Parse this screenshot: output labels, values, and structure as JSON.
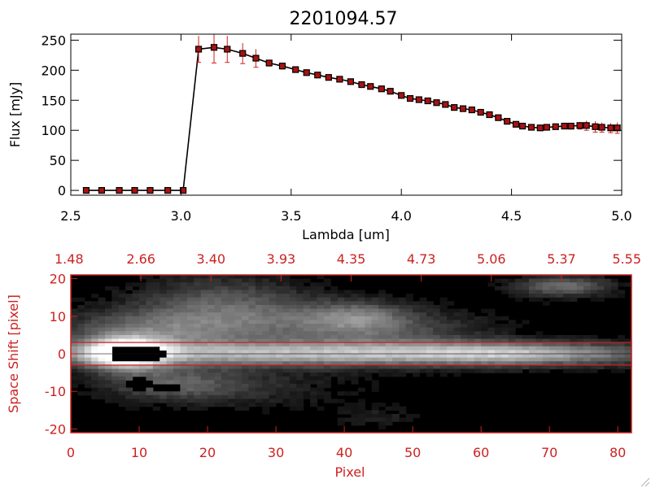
{
  "title": "2201094.57",
  "colors": {
    "axis": "#000000",
    "accent": "#cc2222",
    "marker": "#aa1111",
    "line": "#000000",
    "slit": "#cc2222"
  },
  "chart_data": [
    {
      "type": "line",
      "title": "2201094.57",
      "xlabel": "Lambda [um]",
      "ylabel": "Flux [mJy]",
      "xlim": [
        2.5,
        5.0
      ],
      "ylim": [
        -8,
        260
      ],
      "xticks": [
        "2.5",
        "3.0",
        "3.5",
        "4.0",
        "4.5",
        "5.0"
      ],
      "yticks": [
        "0",
        "50",
        "100",
        "150",
        "200",
        "250"
      ],
      "xtick_values": [
        2.5,
        3.0,
        3.5,
        4.0,
        4.5,
        5.0
      ],
      "ytick_values": [
        0,
        50,
        100,
        150,
        200,
        250
      ],
      "grid": false,
      "series": [
        {
          "x": [
            2.57,
            2.64,
            2.72,
            2.79,
            2.86,
            2.94,
            3.01,
            3.08,
            3.15,
            3.21,
            3.28,
            3.34,
            3.4,
            3.46,
            3.52,
            3.57,
            3.62,
            3.67,
            3.72,
            3.77,
            3.82,
            3.86,
            3.91,
            3.95,
            4.0,
            4.04,
            4.08,
            4.12,
            4.16,
            4.2,
            4.24,
            4.28,
            4.32,
            4.36,
            4.4,
            4.44,
            4.48,
            4.52,
            4.55,
            4.59,
            4.63,
            4.66,
            4.7,
            4.74,
            4.77,
            4.81,
            4.84,
            4.88,
            4.91,
            4.95,
            4.98
          ],
          "y": [
            0,
            0,
            0,
            0,
            0,
            0,
            0,
            235,
            238,
            235,
            228,
            220,
            212,
            207,
            201,
            196,
            192,
            188,
            185,
            181,
            176,
            173,
            169,
            165,
            158,
            153,
            151,
            149,
            146,
            143,
            138,
            136,
            134,
            130,
            126,
            121,
            115,
            110,
            107,
            105,
            104,
            105,
            106,
            107,
            107,
            108,
            108,
            106,
            105,
            104,
            104
          ],
          "err": [
            0,
            0,
            0,
            0,
            0,
            0,
            0,
            22,
            26,
            22,
            17,
            15,
            5,
            5,
            4,
            4,
            4,
            4,
            4,
            4,
            4,
            4,
            4,
            4,
            4,
            4,
            4,
            4,
            4,
            4,
            4,
            4,
            4,
            4,
            4,
            4,
            4,
            4,
            4,
            4,
            4,
            4,
            4,
            4,
            5,
            6,
            8,
            9,
            8,
            8,
            9
          ]
        }
      ]
    },
    {
      "type": "heatmap",
      "xlabel": "Pixel",
      "ylabel": "Space Shift [pixel]",
      "xlim": [
        0,
        82
      ],
      "ylim": [
        -21,
        21
      ],
      "xticks": [
        "0",
        "10",
        "20",
        "30",
        "40",
        "50",
        "60",
        "70",
        "80"
      ],
      "xtick_values": [
        0,
        10,
        20,
        30,
        40,
        50,
        60,
        70,
        80
      ],
      "yticks": [
        "-20",
        "-10",
        "0",
        "10",
        "20"
      ],
      "ytick_values": [
        -20,
        -10,
        0,
        10,
        20
      ],
      "top_axis_label_values": [
        "1.48",
        "2.66",
        "3.40",
        "3.93",
        "4.35",
        "4.73",
        "5.06",
        "5.37",
        "5.55"
      ],
      "slit_rows": [
        3,
        -3
      ],
      "trace_row": 0,
      "colormap": "grayscale",
      "features": [
        {
          "x": 8,
          "y": 0,
          "amp": 1.0,
          "sx": 4,
          "sy": 3
        },
        {
          "x": 40,
          "y": 0,
          "amp": 0.7,
          "sx": 35,
          "sy": 2.3
        },
        {
          "x": 65,
          "y": 0,
          "amp": 0.25,
          "sx": 9,
          "sy": 2
        },
        {
          "x": 12,
          "y": 6,
          "amp": 0.38,
          "sx": 10,
          "sy": 4
        },
        {
          "x": 22,
          "y": 14,
          "amp": 0.3,
          "sx": 9,
          "sy": 5
        },
        {
          "x": 33,
          "y": 8,
          "amp": 0.25,
          "sx": 12,
          "sy": 4
        },
        {
          "x": 42,
          "y": 10,
          "amp": 0.28,
          "sx": 5,
          "sy": 3
        },
        {
          "x": 48,
          "y": 6,
          "amp": 0.2,
          "sx": 10,
          "sy": 4
        },
        {
          "x": 15,
          "y": -8,
          "amp": 0.3,
          "sx": 7,
          "sy": 3
        },
        {
          "x": 26,
          "y": -9,
          "amp": 0.14,
          "sx": 12,
          "sy": 4
        },
        {
          "x": 72,
          "y": 18,
          "amp": 0.42,
          "sx": 5,
          "sy": 2
        },
        {
          "x": 45,
          "y": -17,
          "amp": 0.12,
          "sx": 4,
          "sy": 2
        }
      ],
      "masked_blobs": [
        {
          "x": 8.5,
          "y": 0,
          "rx": 3,
          "ry": 2.2
        },
        {
          "x": 12,
          "y": 0,
          "rx": 2.6,
          "ry": 1.6
        },
        {
          "x": 10,
          "y": -8,
          "rx": 2.2,
          "ry": 2
        },
        {
          "x": 14,
          "y": -9,
          "rx": 2,
          "ry": 1.5
        }
      ]
    }
  ]
}
